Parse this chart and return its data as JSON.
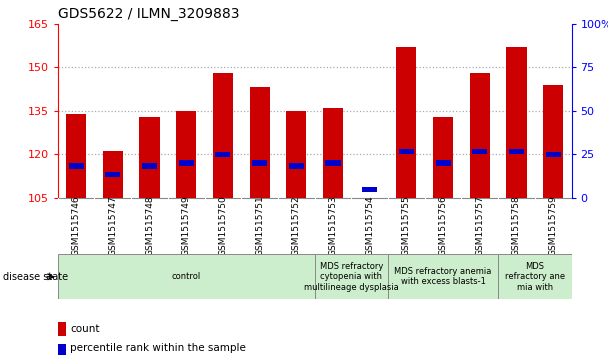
{
  "title": "GDS5622 / ILMN_3209883",
  "samples": [
    "GSM1515746",
    "GSM1515747",
    "GSM1515748",
    "GSM1515749",
    "GSM1515750",
    "GSM1515751",
    "GSM1515752",
    "GSM1515753",
    "GSM1515754",
    "GSM1515755",
    "GSM1515756",
    "GSM1515757",
    "GSM1515758",
    "GSM1515759"
  ],
  "counts": [
    134,
    121,
    133,
    135,
    148,
    143,
    135,
    136,
    105,
    157,
    133,
    148,
    157,
    144
  ],
  "percentile_values": [
    116,
    113,
    116,
    117,
    120,
    117,
    116,
    117,
    108,
    121,
    117,
    121,
    121,
    120
  ],
  "ylim": [
    105,
    165
  ],
  "yticks_left": [
    105,
    120,
    135,
    150,
    165
  ],
  "yticks_right": [
    0,
    25,
    50,
    75,
    100
  ],
  "yticks_right_vals": [
    105,
    120,
    135,
    150,
    165
  ],
  "bar_color": "#cc0000",
  "percentile_color": "#0000cc",
  "bar_bottom": 105,
  "group_defs": [
    {
      "start": 0,
      "end": 7,
      "label": "control"
    },
    {
      "start": 7,
      "end": 9,
      "label": "MDS refractory\ncytopenia with\nmultilineage dysplasia"
    },
    {
      "start": 9,
      "end": 12,
      "label": "MDS refractory anemia\nwith excess blasts-1"
    },
    {
      "start": 12,
      "end": 14,
      "label": "MDS\nrefractory ane\nmia with"
    }
  ],
  "group_color": "#cceecc",
  "gray_color": "#d0d0d0",
  "grid_color": "#aaaaaa",
  "bg_color": "#ffffff",
  "bar_width": 0.55
}
